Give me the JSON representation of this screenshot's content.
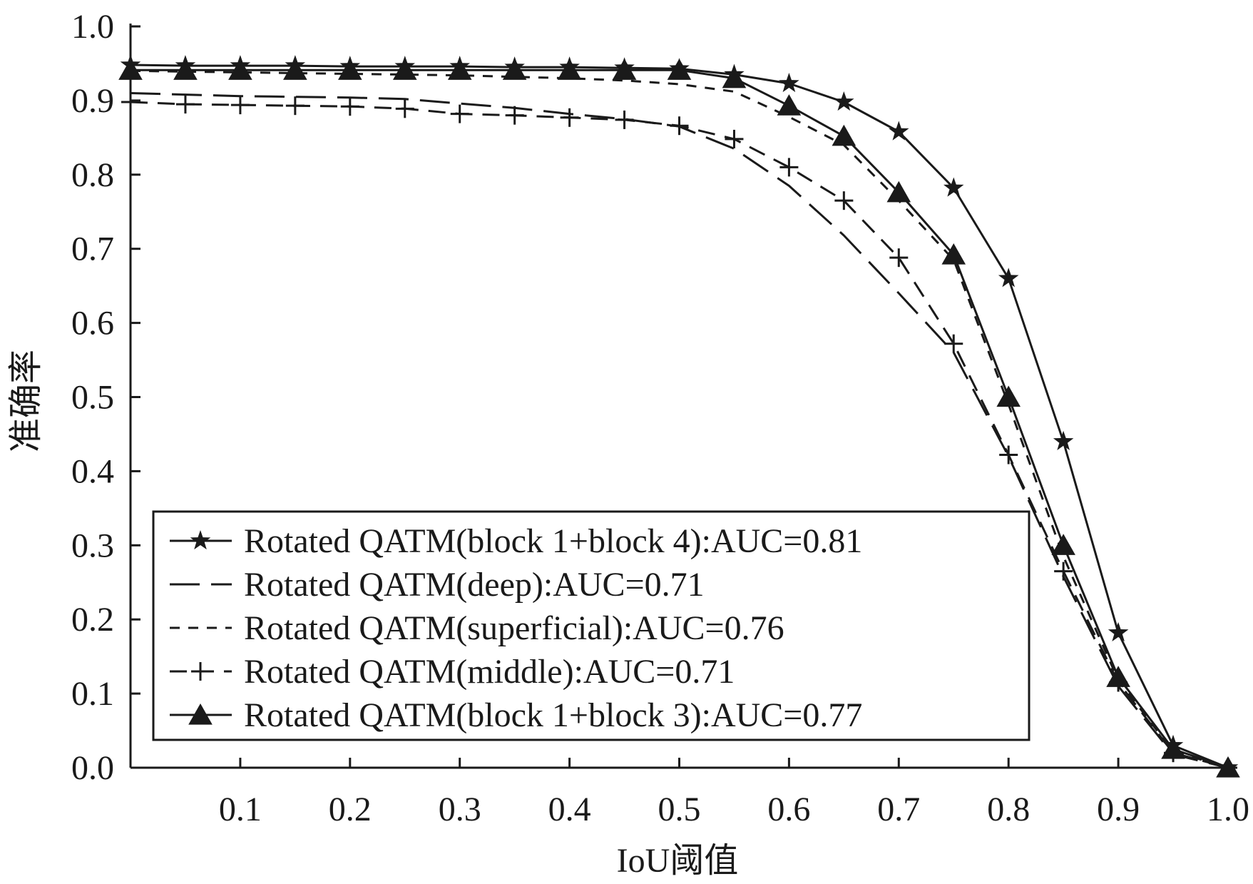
{
  "chart_data": {
    "type": "line",
    "title": "",
    "xlabel": "IoU阈值",
    "ylabel": "准确率",
    "xlim": [
      0,
      1
    ],
    "ylim": [
      0,
      1
    ],
    "x_ticks": [
      0.1,
      0.2,
      0.3,
      0.4,
      0.5,
      0.6,
      0.7,
      0.8,
      0.9,
      1.0
    ],
    "x_tick_labels": [
      "0.1",
      "0.2",
      "0.3",
      "0.4",
      "0.5",
      "0.6",
      "0.7",
      "0.8",
      "0.9",
      "1.0"
    ],
    "y_ticks": [
      0.0,
      0.1,
      0.2,
      0.3,
      0.4,
      0.5,
      0.6,
      0.7,
      0.8,
      0.9,
      1.0
    ],
    "y_tick_labels": [
      "0.0",
      "0.1",
      "0.2",
      "0.3",
      "0.4",
      "0.5",
      "0.6",
      "0.7",
      "0.8",
      "0.9",
      "1.0"
    ],
    "grid": false,
    "legend_position": "lower-left",
    "line_color": "#1a1a1a",
    "x": [
      0.0,
      0.05,
      0.1,
      0.15,
      0.2,
      0.25,
      0.3,
      0.35,
      0.4,
      0.45,
      0.5,
      0.55,
      0.6,
      0.65,
      0.7,
      0.75,
      0.8,
      0.85,
      0.9,
      0.95,
      1.0
    ],
    "series": [
      {
        "name": "Rotated QATM(block 1+block 4):AUC=0.81",
        "marker": "star",
        "dash": "solid",
        "values": [
          0.948,
          0.947,
          0.947,
          0.947,
          0.946,
          0.946,
          0.946,
          0.945,
          0.945,
          0.944,
          0.943,
          0.935,
          0.923,
          0.898,
          0.858,
          0.782,
          0.66,
          0.44,
          0.182,
          0.03,
          0.0
        ]
      },
      {
        "name": "Rotated QATM(deep):AUC=0.71",
        "marker": "none",
        "dash": "longdash",
        "values": [
          0.91,
          0.908,
          0.906,
          0.905,
          0.904,
          0.902,
          0.896,
          0.89,
          0.882,
          0.875,
          0.865,
          0.835,
          0.785,
          0.718,
          0.64,
          0.56,
          0.42,
          0.258,
          0.11,
          0.018,
          0.0
        ]
      },
      {
        "name": "Rotated QATM(superficial):AUC=0.76",
        "marker": "none",
        "dash": "shortdash",
        "values": [
          0.94,
          0.939,
          0.938,
          0.937,
          0.936,
          0.935,
          0.934,
          0.932,
          0.93,
          0.927,
          0.922,
          0.912,
          0.878,
          0.84,
          0.765,
          0.685,
          0.49,
          0.285,
          0.118,
          0.022,
          0.0
        ]
      },
      {
        "name": "Rotated QATM(middle):AUC=0.71",
        "marker": "plus",
        "dash": "dash",
        "values": [
          0.898,
          0.895,
          0.894,
          0.893,
          0.892,
          0.889,
          0.882,
          0.88,
          0.877,
          0.874,
          0.866,
          0.848,
          0.81,
          0.765,
          0.688,
          0.572,
          0.422,
          0.265,
          0.115,
          0.02,
          0.0
        ]
      },
      {
        "name": "Rotated QATM(block 1+block 3):AUC=0.77",
        "marker": "triangle",
        "dash": "solid",
        "values": [
          0.941,
          0.941,
          0.941,
          0.941,
          0.941,
          0.941,
          0.941,
          0.941,
          0.941,
          0.941,
          0.941,
          0.93,
          0.893,
          0.852,
          0.776,
          0.692,
          0.5,
          0.3,
          0.122,
          0.025,
          0.0
        ]
      }
    ]
  }
}
